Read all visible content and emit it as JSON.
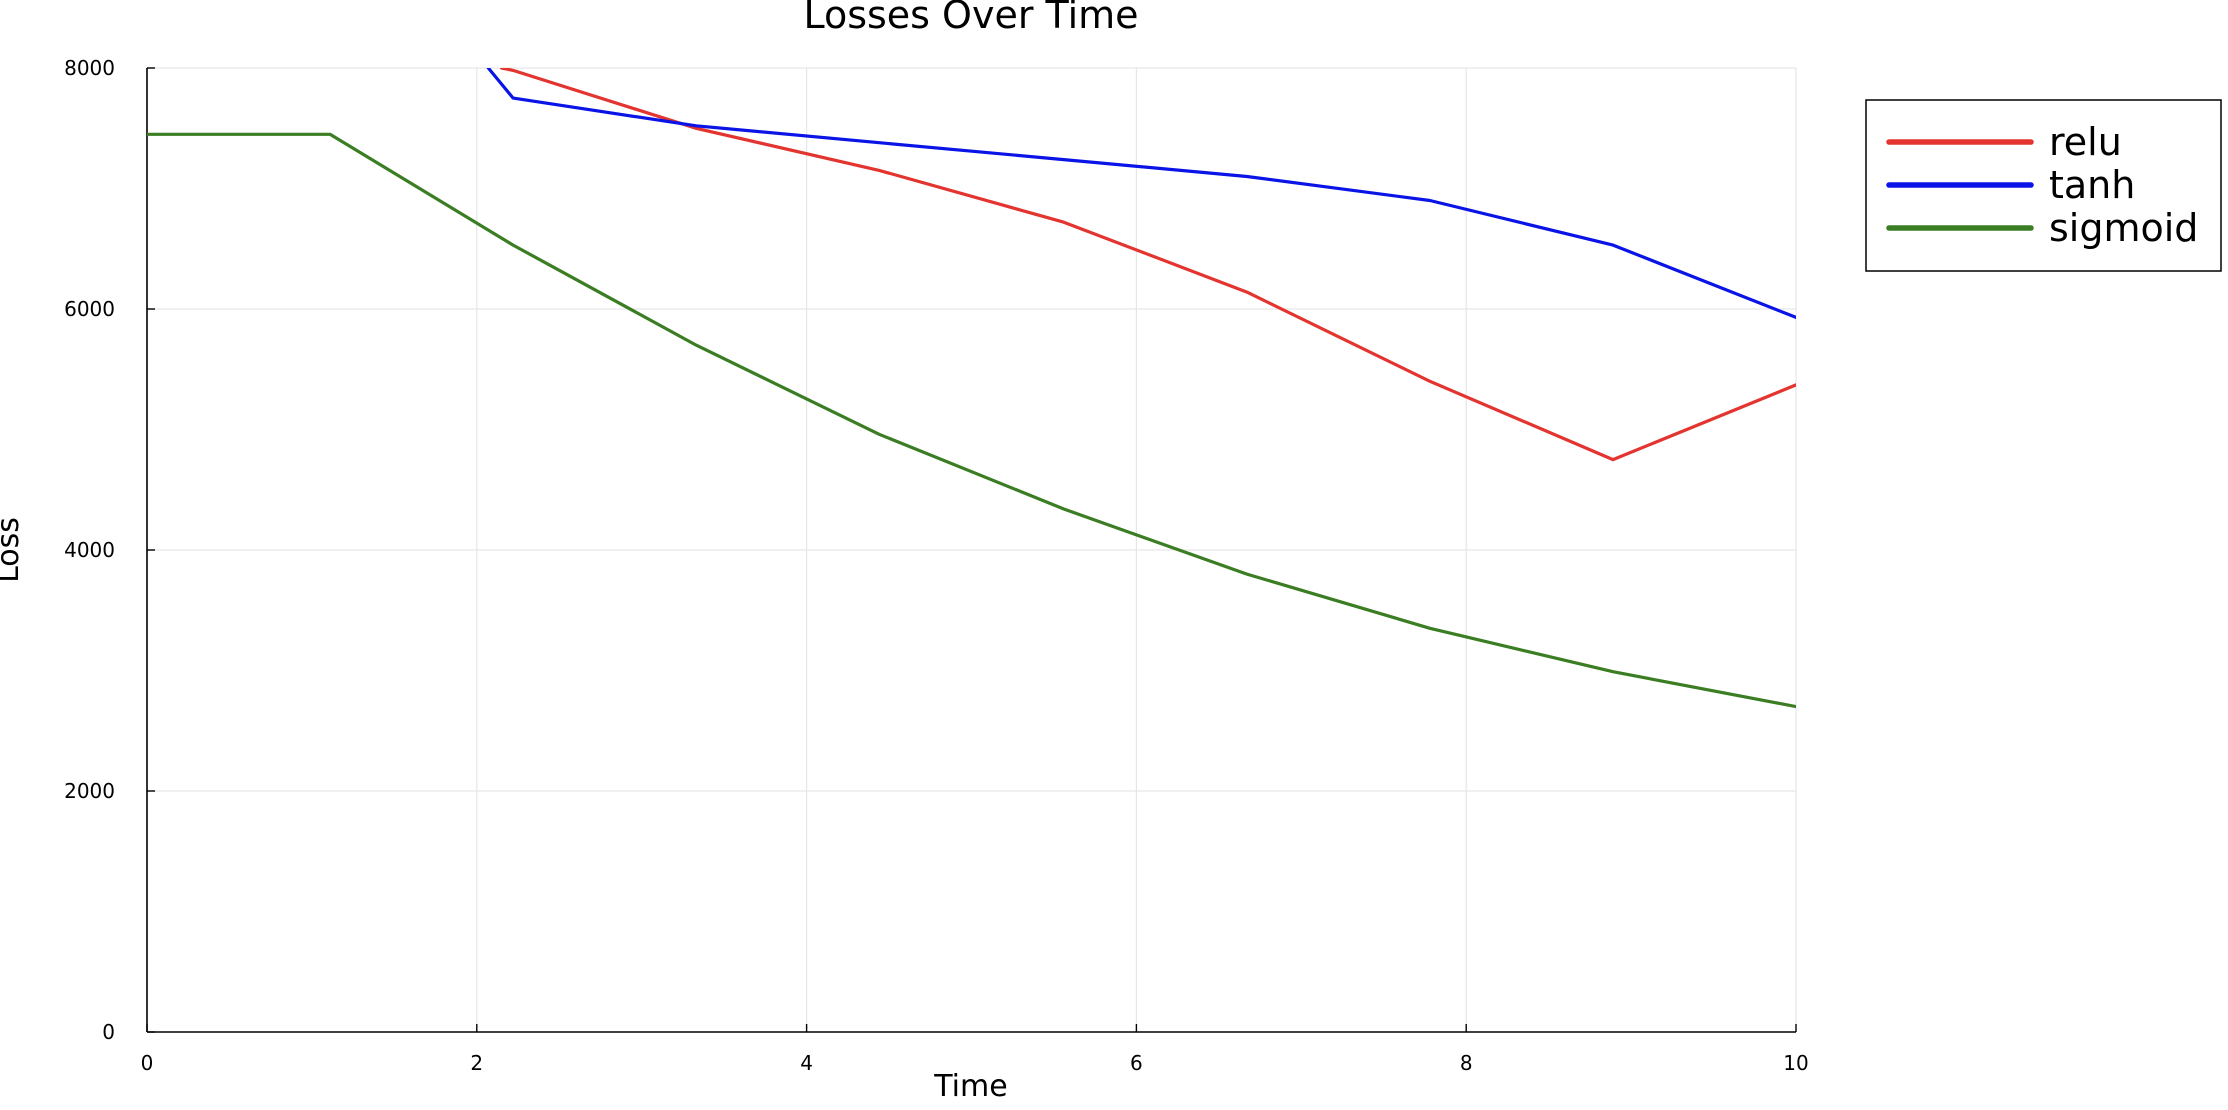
{
  "chart_data": {
    "type": "line",
    "title": "Losses Over Time",
    "xlabel": "Time",
    "ylabel": "Loss",
    "xlim": [
      0,
      10
    ],
    "ylim": [
      0,
      8000
    ],
    "xticks": [
      0,
      2,
      4,
      6,
      8,
      10
    ],
    "yticks": [
      0,
      2000,
      4000,
      6000,
      8000
    ],
    "grid": true,
    "legend_position": "outside-top-right",
    "series": [
      {
        "name": "relu",
        "color": "#e3342f",
        "x": [
          2.15,
          2.22,
          3.33,
          4.44,
          5.56,
          6.67,
          7.78,
          8.89,
          10.0
        ],
        "y": [
          8000,
          7980,
          7500,
          7150,
          6720,
          6140,
          5400,
          4750,
          5370
        ]
      },
      {
        "name": "tanh",
        "color": "#0a14e6",
        "x": [
          2.07,
          2.22,
          3.33,
          4.44,
          5.56,
          6.67,
          7.78,
          8.89,
          10.0
        ],
        "y": [
          8000,
          7750,
          7520,
          7380,
          7240,
          7100,
          6900,
          6530,
          5930
        ]
      },
      {
        "name": "sigmoid",
        "color": "#3a7d22",
        "x": [
          0,
          1.11,
          2.22,
          3.33,
          4.44,
          5.56,
          6.67,
          7.78,
          8.89,
          10.0
        ],
        "y": [
          7450,
          7450,
          6530,
          5700,
          4960,
          4340,
          3800,
          3350,
          2990,
          2700
        ]
      }
    ]
  }
}
